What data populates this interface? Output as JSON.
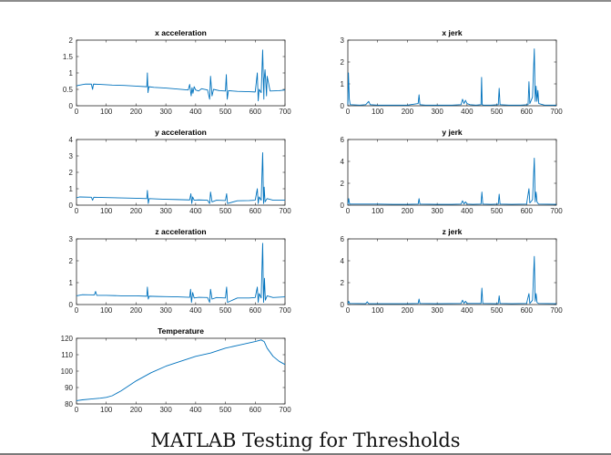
{
  "slide": {
    "title": "MATLAB Testing for Thresholds"
  },
  "colors": {
    "series": "#0072bd",
    "axis": "#262626",
    "frame_rule": "#8c8c8c"
  },
  "chart_data": [
    {
      "type": "line",
      "title": "x acceleration",
      "xlim": [
        0,
        700
      ],
      "ylim": [
        0,
        2
      ],
      "xticks": [
        0,
        100,
        200,
        300,
        400,
        500,
        600,
        700
      ],
      "yticks": [
        0,
        0.5,
        1,
        1.5,
        2
      ],
      "series": [
        {
          "x": [
            0,
            5,
            30,
            50,
            54,
            57,
            80,
            120,
            160,
            200,
            236,
            238,
            240,
            243,
            260,
            300,
            340,
            375,
            380,
            385,
            388,
            391,
            395,
            400,
            410,
            420,
            440,
            447,
            450,
            455,
            460,
            480,
            500,
            503,
            506,
            510,
            540,
            580,
            600,
            607,
            610,
            613,
            620,
            625,
            629,
            630,
            633,
            638,
            640,
            650,
            680,
            700
          ],
          "y": [
            0.6,
            0.62,
            0.66,
            0.66,
            0.5,
            0.66,
            0.65,
            0.63,
            0.62,
            0.6,
            0.58,
            1.0,
            0.4,
            0.58,
            0.56,
            0.54,
            0.51,
            0.48,
            0.65,
            0.3,
            0.55,
            0.38,
            0.58,
            0.48,
            0.45,
            0.52,
            0.48,
            0.2,
            0.9,
            0.3,
            0.5,
            0.46,
            0.45,
            0.95,
            0.2,
            0.46,
            0.44,
            0.43,
            0.42,
            1.0,
            0.15,
            0.5,
            0.4,
            1.7,
            0.2,
            0.8,
            1.1,
            0.3,
            0.9,
            0.45,
            0.46,
            0.48
          ]
        }
      ]
    },
    {
      "type": "line",
      "title": "x jerk",
      "xlim": [
        0,
        700
      ],
      "ylim": [
        0,
        3
      ],
      "xticks": [
        0,
        100,
        200,
        300,
        400,
        500,
        600,
        700
      ],
      "yticks": [
        0,
        1,
        2,
        3
      ],
      "series": [
        {
          "x": [
            0,
            2,
            5,
            8,
            40,
            60,
            70,
            75,
            100,
            150,
            200,
            236,
            239,
            242,
            260,
            300,
            350,
            380,
            385,
            390,
            395,
            400,
            410,
            430,
            447,
            449,
            451,
            455,
            480,
            505,
            508,
            511,
            540,
            580,
            605,
            608,
            611,
            620,
            626,
            629,
            632,
            635,
            638,
            641,
            660,
            700
          ],
          "y": [
            0.05,
            1.5,
            0.3,
            0.05,
            0.03,
            0.05,
            0.2,
            0.05,
            0.03,
            0.03,
            0.03,
            0.1,
            0.5,
            0.05,
            0.03,
            0.03,
            0.03,
            0.05,
            0.3,
            0.1,
            0.25,
            0.1,
            0.05,
            0.03,
            0.05,
            1.3,
            0.05,
            0.03,
            0.03,
            0.05,
            0.8,
            0.05,
            0.03,
            0.03,
            0.05,
            1.1,
            0.1,
            0.4,
            2.6,
            0.2,
            0.9,
            0.2,
            0.7,
            0.1,
            0.03,
            0.03
          ]
        }
      ]
    },
    {
      "type": "line",
      "title": "y acceleration",
      "xlim": [
        0,
        700
      ],
      "ylim": [
        0,
        4
      ],
      "xticks": [
        0,
        100,
        200,
        300,
        400,
        500,
        600,
        700
      ],
      "yticks": [
        0,
        1,
        2,
        3,
        4
      ],
      "series": [
        {
          "x": [
            0,
            10,
            50,
            54,
            58,
            100,
            150,
            200,
            236,
            238,
            241,
            244,
            270,
            300,
            340,
            380,
            384,
            387,
            390,
            395,
            410,
            440,
            447,
            450,
            455,
            470,
            500,
            504,
            507,
            540,
            580,
            600,
            607,
            610,
            613,
            620,
            625,
            628,
            630,
            633,
            640,
            660,
            700
          ],
          "y": [
            0.45,
            0.5,
            0.48,
            0.3,
            0.48,
            0.46,
            0.44,
            0.42,
            0.4,
            0.9,
            0.1,
            0.4,
            0.38,
            0.36,
            0.34,
            0.32,
            0.7,
            0.1,
            0.5,
            0.3,
            0.32,
            0.3,
            0.1,
            0.8,
            0.2,
            0.3,
            0.28,
            0.7,
            0.1,
            0.27,
            0.28,
            0.3,
            1.0,
            0.1,
            0.5,
            0.3,
            3.2,
            0.1,
            1.1,
            0.2,
            0.4,
            0.3,
            0.3
          ]
        }
      ]
    },
    {
      "type": "line",
      "title": "y jerk",
      "xlim": [
        0,
        700
      ],
      "ylim": [
        0,
        6
      ],
      "xticks": [
        0,
        100,
        200,
        300,
        400,
        500,
        600,
        700
      ],
      "yticks": [
        0,
        2,
        4,
        6
      ],
      "series": [
        {
          "x": [
            0,
            3,
            6,
            50,
            100,
            150,
            200,
            236,
            239,
            242,
            300,
            350,
            380,
            385,
            390,
            395,
            400,
            420,
            447,
            450,
            453,
            480,
            505,
            508,
            511,
            550,
            600,
            608,
            611,
            620,
            626,
            629,
            632,
            635,
            640,
            700
          ],
          "y": [
            0.1,
            0.6,
            0.1,
            0.1,
            0.1,
            0.08,
            0.08,
            0.1,
            0.6,
            0.1,
            0.08,
            0.08,
            0.1,
            0.4,
            0.1,
            0.3,
            0.1,
            0.08,
            0.1,
            1.2,
            0.1,
            0.08,
            0.1,
            1.0,
            0.1,
            0.08,
            0.1,
            1.5,
            0.2,
            0.5,
            4.3,
            0.3,
            1.2,
            0.3,
            0.1,
            0.08
          ]
        }
      ]
    },
    {
      "type": "line",
      "title": "z acceleration",
      "xlim": [
        0,
        700
      ],
      "ylim": [
        0,
        3
      ],
      "xticks": [
        0,
        100,
        200,
        300,
        400,
        500,
        600,
        700
      ],
      "yticks": [
        0,
        1,
        2,
        3
      ],
      "series": [
        {
          "x": [
            0,
            20,
            60,
            64,
            68,
            100,
            150,
            200,
            236,
            238,
            241,
            244,
            270,
            300,
            340,
            380,
            383,
            386,
            390,
            395,
            410,
            440,
            447,
            450,
            455,
            470,
            500,
            504,
            507,
            540,
            580,
            600,
            607,
            610,
            613,
            620,
            625,
            628,
            631,
            634,
            640,
            660,
            700
          ],
          "y": [
            0.4,
            0.45,
            0.44,
            0.6,
            0.42,
            0.42,
            0.4,
            0.4,
            0.38,
            0.8,
            0.25,
            0.38,
            0.37,
            0.36,
            0.35,
            0.33,
            0.7,
            0.1,
            0.55,
            0.3,
            0.33,
            0.32,
            0.1,
            0.7,
            0.25,
            0.32,
            0.3,
            0.8,
            0.1,
            0.3,
            0.3,
            0.32,
            0.8,
            0.1,
            0.5,
            0.3,
            2.8,
            0.1,
            1.2,
            0.2,
            0.4,
            0.32,
            0.35
          ]
        }
      ]
    },
    {
      "type": "line",
      "title": "z jerk",
      "xlim": [
        0,
        700
      ],
      "ylim": [
        0,
        6
      ],
      "xticks": [
        0,
        100,
        200,
        300,
        400,
        500,
        600,
        700
      ],
      "yticks": [
        0,
        2,
        4,
        6
      ],
      "series": [
        {
          "x": [
            0,
            3,
            6,
            60,
            65,
            70,
            100,
            200,
            236,
            239,
            242,
            300,
            380,
            385,
            390,
            395,
            400,
            447,
            450,
            453,
            500,
            505,
            508,
            511,
            550,
            600,
            608,
            611,
            620,
            626,
            629,
            632,
            635,
            640,
            700
          ],
          "y": [
            0.1,
            0.3,
            0.1,
            0.08,
            0.25,
            0.08,
            0.08,
            0.08,
            0.1,
            0.5,
            0.1,
            0.08,
            0.1,
            0.4,
            0.1,
            0.3,
            0.1,
            0.1,
            1.5,
            0.1,
            0.08,
            0.1,
            0.8,
            0.1,
            0.08,
            0.1,
            1.0,
            0.1,
            0.4,
            4.4,
            0.3,
            1.0,
            0.2,
            0.1,
            0.08
          ]
        }
      ]
    },
    {
      "type": "line",
      "title": "Temperature",
      "xlim": [
        0,
        700
      ],
      "ylim": [
        80,
        120
      ],
      "xticks": [
        0,
        100,
        200,
        300,
        400,
        500,
        600,
        700
      ],
      "yticks": [
        80,
        90,
        100,
        110,
        120
      ],
      "series": [
        {
          "x": [
            0,
            20,
            50,
            80,
            100,
            120,
            150,
            200,
            250,
            300,
            350,
            400,
            450,
            500,
            550,
            600,
            620,
            630,
            640,
            660,
            680,
            700
          ],
          "y": [
            82,
            82.5,
            83,
            83.5,
            84,
            85,
            88,
            94,
            99,
            103,
            106,
            109,
            111,
            114,
            116,
            118,
            119,
            118,
            114,
            109,
            106,
            104
          ]
        }
      ]
    }
  ]
}
